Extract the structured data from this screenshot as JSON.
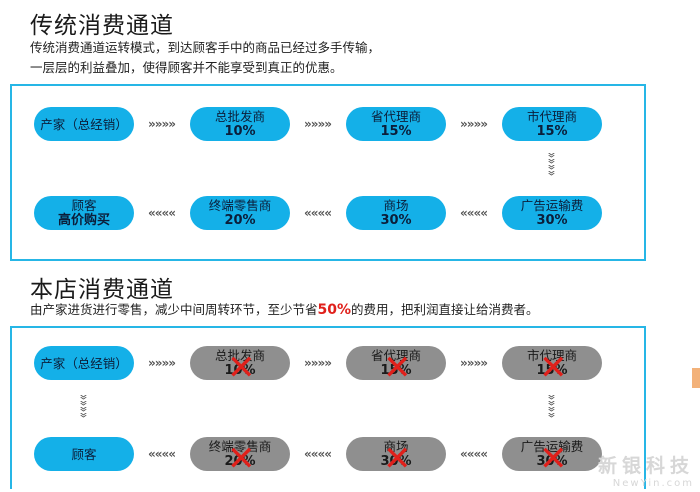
{
  "section1": {
    "title": "传统消费通道",
    "desc_line1": "传统消费通道运转模式，到达顾客手中的商品已经过多手传输，",
    "desc_line2": "一层层的利益叠加，使得顾客并不能享受到真正的优惠。",
    "nodes": [
      {
        "label": "产家（总经销）",
        "percent": ""
      },
      {
        "label": "总批发商",
        "percent": "10%"
      },
      {
        "label": "省代理商",
        "percent": "15%"
      },
      {
        "label": "市代理商",
        "percent": "15%"
      },
      {
        "label": "广告运输费",
        "percent": "30%"
      },
      {
        "label": "商场",
        "percent": "30%"
      },
      {
        "label": "终端零售商",
        "percent": "20%"
      },
      {
        "label": "顾客",
        "percent": "高价购买"
      }
    ]
  },
  "section2": {
    "title": "本店消费通道",
    "desc_pre": "由产家进货进行零售，减少中间周转环节，至少节省",
    "desc_highlight": "50%",
    "desc_post": "的费用，把利润直接让给消费者。",
    "nodes": [
      {
        "label": "产家（总经销）",
        "percent": ""
      },
      {
        "label": "总批发商",
        "percent": "10%"
      },
      {
        "label": "省代理商",
        "percent": "15%"
      },
      {
        "label": "市代理商",
        "percent": "15%"
      },
      {
        "label": "广告运输费",
        "percent": "30%"
      },
      {
        "label": "商场",
        "percent": "30%"
      },
      {
        "label": "终端零售商",
        "percent": "20%"
      },
      {
        "label": "顾客",
        "percent": ""
      }
    ],
    "crossed_mark": "✕"
  },
  "arrows": {
    "right": "»»»»",
    "left": "««««",
    "down": "»"
  },
  "watermark": {
    "cn": "新银科技",
    "en": "NewYin.com"
  },
  "colors": {
    "panel_border": "#26b6e6",
    "pill_blue": "#14b0e8",
    "pill_gray": "#8f8f8f",
    "highlight": "#e0201b"
  }
}
